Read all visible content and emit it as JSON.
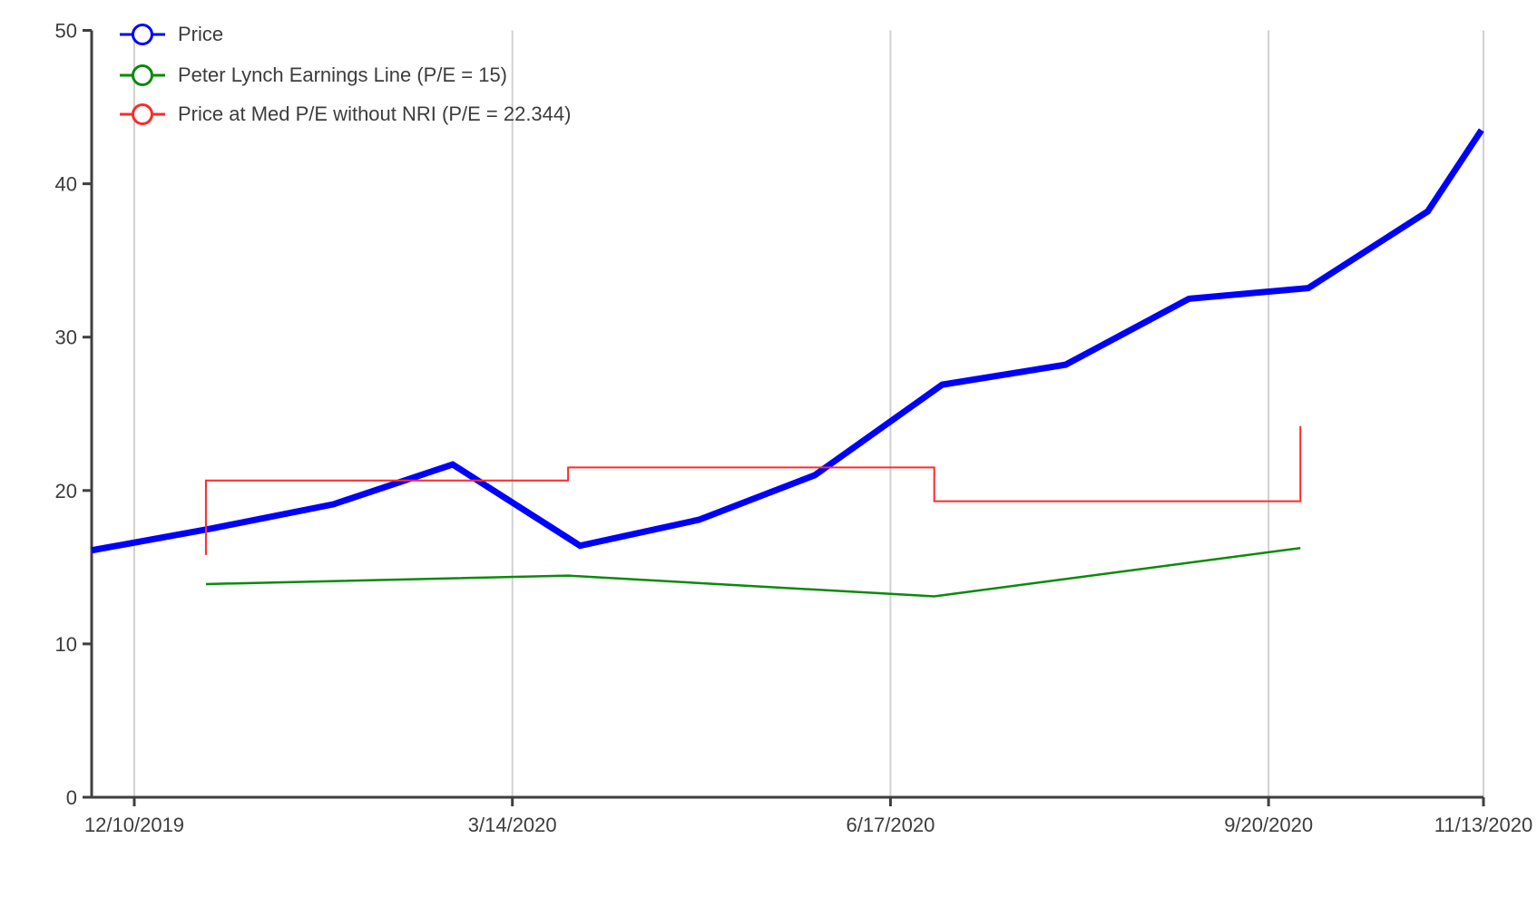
{
  "chart_data": {
    "type": "line",
    "title": "",
    "x_axis": {
      "tick_labels": [
        "12/10/2019",
        "3/14/2020",
        "6/17/2020",
        "9/20/2020",
        "11/13/2020"
      ],
      "tick_days": [
        0,
        95,
        190,
        285,
        339
      ],
      "grid": true
    },
    "y_axis": {
      "ticks": [
        0,
        10,
        20,
        30,
        40,
        50
      ],
      "range": [
        0,
        50
      ],
      "grid": false
    },
    "legend": {
      "position": "top-left"
    },
    "series": [
      {
        "name": "Price",
        "color": "#0000ff",
        "line_width": 7,
        "marker": "open-circle",
        "x_days": [
          -10.7,
          19,
          50,
          80,
          112,
          142,
          171,
          203,
          234,
          265,
          295,
          325,
          338.5
        ],
        "values": [
          16.1,
          17.5,
          19.1,
          21.7,
          16.4,
          18.1,
          21.0,
          26.9,
          28.2,
          32.5,
          33.2,
          38.2,
          43.5
        ]
      },
      {
        "name": "Peter Lynch Earnings Line (P/E = 15)",
        "color": "#0a8a0a",
        "line_width": 2.5,
        "marker": "open-circle",
        "x_days": [
          18,
          109,
          201,
          293
        ],
        "values": [
          13.9,
          14.45,
          13.1,
          16.25
        ]
      },
      {
        "name": "Price at Med P/E without NRI (P/E = 22.344)",
        "color": "#ff2a2a",
        "line_width": 2,
        "marker": "open-circle",
        "x_days": [
          18,
          18,
          109,
          109,
          201,
          201,
          293,
          293
        ],
        "values": [
          15.8,
          20.65,
          20.65,
          21.5,
          21.5,
          19.3,
          19.3,
          24.2
        ]
      }
    ],
    "colors": {
      "axis": "#3f3f3f",
      "grid": "#d0d0d0",
      "text": "#3c3c3c",
      "background": "#ffffff"
    }
  }
}
